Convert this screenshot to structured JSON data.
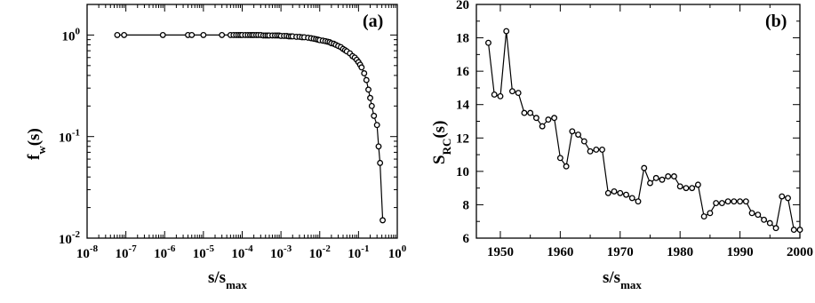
{
  "chart_data": [
    {
      "type": "scatter",
      "panel_label": "(a)",
      "x_scale": "log",
      "y_scale": "log",
      "xlabel": {
        "main": "s/s",
        "sub": "max"
      },
      "ylabel": {
        "main": "f",
        "sub": "w",
        "tail": "(s)"
      },
      "xlim": [
        1e-08,
        1
      ],
      "ylim": [
        0.01,
        2
      ],
      "x_ticks": [
        {
          "base": "10",
          "exp": "-8",
          "value": 1e-08
        },
        {
          "base": "10",
          "exp": "-7",
          "value": 1e-07
        },
        {
          "base": "10",
          "exp": "-6",
          "value": 1e-06
        },
        {
          "base": "10",
          "exp": "-5",
          "value": 1e-05
        },
        {
          "base": "10",
          "exp": "-4",
          "value": 0.0001
        },
        {
          "base": "10",
          "exp": "-3",
          "value": 0.001
        },
        {
          "base": "10",
          "exp": "-2",
          "value": 0.01
        },
        {
          "base": "10",
          "exp": "-1",
          "value": 0.1
        },
        {
          "base": "10",
          "exp": "0",
          "value": 1
        }
      ],
      "y_ticks": [
        {
          "base": "10",
          "exp": "-2",
          "value": 0.01
        },
        {
          "base": "10",
          "exp": "-1",
          "value": 0.1
        },
        {
          "base": "10",
          "exp": "0",
          "value": 1
        }
      ],
      "series": [
        {
          "points": [
            [
              6e-08,
              1.0
            ],
            [
              9e-08,
              1.0
            ],
            [
              9e-07,
              1.0
            ],
            [
              4e-06,
              1.0
            ],
            [
              5e-06,
              1.0
            ],
            [
              1e-05,
              1.0
            ],
            [
              3e-05,
              1.0
            ],
            [
              5e-05,
              1.0
            ],
            [
              6e-05,
              1.0
            ],
            [
              7e-05,
              1.0
            ],
            [
              8e-05,
              1.0
            ],
            [
              9e-05,
              1.0
            ],
            [
              0.0001,
              1.0
            ],
            [
              0.00012,
              1.0
            ],
            [
              0.00014,
              1.0
            ],
            [
              0.00016,
              1.0
            ],
            [
              0.00018,
              1.0
            ],
            [
              0.0002,
              1.0
            ],
            [
              0.00023,
              1.0
            ],
            [
              0.00026,
              1.0
            ],
            [
              0.0003,
              1.0
            ],
            [
              0.00035,
              0.99
            ],
            [
              0.0004,
              0.99
            ],
            [
              0.00045,
              0.99
            ],
            [
              0.0005,
              0.99
            ],
            [
              0.0006,
              0.99
            ],
            [
              0.0007,
              0.99
            ],
            [
              0.0008,
              0.99
            ],
            [
              0.0009,
              0.99
            ],
            [
              0.001,
              0.98
            ],
            [
              0.0012,
              0.98
            ],
            [
              0.0014,
              0.98
            ],
            [
              0.0016,
              0.97
            ],
            [
              0.0018,
              0.97
            ],
            [
              0.002,
              0.97
            ],
            [
              0.0025,
              0.96
            ],
            [
              0.003,
              0.96
            ],
            [
              0.0035,
              0.95
            ],
            [
              0.004,
              0.95
            ],
            [
              0.005,
              0.94
            ],
            [
              0.006,
              0.93
            ],
            [
              0.007,
              0.92
            ],
            [
              0.008,
              0.91
            ],
            [
              0.009,
              0.9
            ],
            [
              0.01,
              0.89
            ],
            [
              0.012,
              0.88
            ],
            [
              0.014,
              0.87
            ],
            [
              0.016,
              0.86
            ],
            [
              0.018,
              0.85
            ],
            [
              0.02,
              0.83
            ],
            [
              0.023,
              0.82
            ],
            [
              0.026,
              0.8
            ],
            [
              0.03,
              0.78
            ],
            [
              0.035,
              0.76
            ],
            [
              0.04,
              0.73
            ],
            [
              0.045,
              0.71
            ],
            [
              0.05,
              0.69
            ],
            [
              0.06,
              0.66
            ],
            [
              0.07,
              0.62
            ],
            [
              0.08,
              0.6
            ],
            [
              0.09,
              0.57
            ],
            [
              0.1,
              0.54
            ],
            [
              0.11,
              0.51
            ],
            [
              0.12,
              0.48
            ],
            [
              0.14,
              0.42
            ],
            [
              0.16,
              0.36
            ],
            [
              0.18,
              0.29
            ],
            [
              0.2,
              0.24
            ],
            [
              0.22,
              0.2
            ],
            [
              0.25,
              0.16
            ],
            [
              0.3,
              0.13
            ],
            [
              0.33,
              0.08
            ],
            [
              0.36,
              0.055
            ],
            [
              0.42,
              0.015
            ]
          ]
        }
      ]
    },
    {
      "type": "line",
      "panel_label": "(b)",
      "xlabel": {
        "main": "s/s",
        "sub": "max"
      },
      "ylabel": {
        "main": "S",
        "sub": "RC",
        "tail": "(s)"
      },
      "xlim": [
        1946,
        2000
      ],
      "ylim": [
        6,
        20
      ],
      "x_ticks": [
        "1950",
        "1960",
        "1970",
        "1980",
        "1990",
        "2000"
      ],
      "y_ticks": [
        "6",
        "8",
        "10",
        "12",
        "14",
        "16",
        "18",
        "20"
      ],
      "series": [
        {
          "x": [
            1948,
            1949,
            1950,
            1951,
            1952,
            1953,
            1954,
            1955,
            1956,
            1957,
            1958,
            1959,
            1960,
            1961,
            1962,
            1963,
            1964,
            1965,
            1966,
            1967,
            1968,
            1969,
            1970,
            1971,
            1972,
            1973,
            1974,
            1975,
            1976,
            1977,
            1978,
            1979,
            1980,
            1981,
            1982,
            1983,
            1984,
            1985,
            1986,
            1987,
            1988,
            1989,
            1990,
            1991,
            1992,
            1993,
            1994,
            1995,
            1996,
            1997,
            1998,
            1999,
            2000
          ],
          "values": [
            17.7,
            14.6,
            14.5,
            18.4,
            14.8,
            14.7,
            13.5,
            13.5,
            13.2,
            12.7,
            13.1,
            13.2,
            10.8,
            10.3,
            12.4,
            12.2,
            11.8,
            11.2,
            11.3,
            11.3,
            8.7,
            8.8,
            8.7,
            8.6,
            8.4,
            8.2,
            10.2,
            9.3,
            9.6,
            9.5,
            9.7,
            9.7,
            9.1,
            9.0,
            9.0,
            9.2,
            7.3,
            7.5,
            8.1,
            8.1,
            8.2,
            8.2,
            8.2,
            8.2,
            7.5,
            7.4,
            7.1,
            6.9,
            6.6,
            8.5,
            8.4,
            6.5,
            6.5
          ]
        }
      ]
    }
  ]
}
